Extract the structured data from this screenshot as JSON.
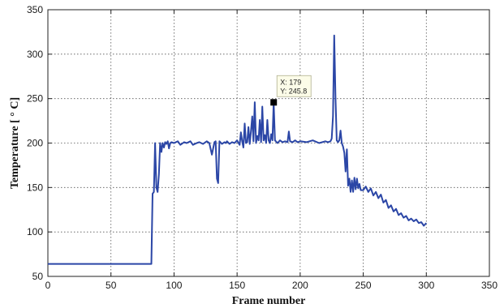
{
  "chart_data": {
    "type": "line",
    "xlabel": "Frame number",
    "ylabel": "Temperature [ ° C]",
    "xlim": [
      0,
      350
    ],
    "ylim": [
      50,
      350
    ],
    "xticks": [
      0,
      50,
      100,
      150,
      200,
      250,
      300,
      350
    ],
    "yticks": [
      50,
      100,
      150,
      200,
      250,
      300,
      350
    ],
    "grid": true,
    "series": [
      {
        "color": "#2b46a6",
        "x": [
          0,
          20,
          40,
          60,
          82,
          83,
          84,
          85,
          86,
          87,
          88,
          89,
          90,
          91,
          92,
          93,
          94,
          95,
          96,
          97,
          98,
          100,
          103,
          105,
          108,
          110,
          113,
          115,
          118,
          120,
          123,
          126,
          128,
          130,
          132,
          133,
          134,
          135,
          136,
          138,
          140,
          141,
          142,
          144,
          146,
          148,
          150,
          152,
          153,
          154,
          155,
          156,
          157,
          158,
          159,
          160,
          161,
          162,
          163,
          164,
          165,
          166,
          167,
          168,
          169,
          170,
          171,
          172,
          173,
          174,
          175,
          176,
          177,
          178,
          179,
          180,
          182,
          184,
          186,
          188,
          190,
          191,
          192,
          194,
          196,
          198,
          200,
          205,
          210,
          215,
          220,
          222,
          224,
          225,
          226,
          227,
          228,
          229,
          230,
          231,
          232,
          233,
          234,
          235,
          236,
          237,
          238,
          239,
          240,
          241,
          242,
          243,
          244,
          245,
          246,
          247,
          248,
          250,
          252,
          254,
          256,
          258,
          260,
          262,
          264,
          266,
          268,
          270,
          272,
          274,
          276,
          278,
          280,
          282,
          284,
          286,
          288,
          290,
          292,
          294,
          296,
          298,
          300
        ],
        "y": [
          64,
          64,
          64,
          64,
          64,
          143,
          145,
          200,
          150,
          145,
          165,
          200,
          190,
          200,
          195,
          201,
          199,
          202,
          194,
          200,
          201,
          200,
          202,
          198,
          201,
          200,
          202,
          198,
          200,
          201,
          199,
          202,
          200,
          187,
          201,
          202,
          160,
          155,
          202,
          199,
          201,
          200,
          202,
          199,
          201,
          200,
          203,
          198,
          212,
          202,
          195,
          222,
          200,
          201,
          218,
          199,
          213,
          230,
          202,
          246,
          200,
          208,
          203,
          226,
          201,
          241,
          203,
          209,
          200,
          226,
          203,
          200,
          210,
          203,
          245.8,
          203,
          200,
          203,
          201,
          202,
          201,
          213,
          202,
          201,
          203,
          201,
          202,
          201,
          203,
          200,
          202,
          201,
          202,
          205,
          230,
          321,
          250,
          203,
          201,
          203,
          214,
          200,
          196,
          189,
          168,
          193,
          152,
          160,
          145,
          158,
          145,
          161,
          148,
          160,
          149,
          154,
          147,
          147,
          151,
          145,
          149,
          141,
          145,
          138,
          142,
          133,
          136,
          127,
          130,
          123,
          126,
          119,
          121,
          116,
          118,
          113,
          115,
          112,
          114,
          110,
          111,
          107,
          110
        ]
      }
    ],
    "datatip": {
      "x_text": "X: 179",
      "y_text": "Y: 245.8",
      "x": 179,
      "y": 245.8
    }
  }
}
